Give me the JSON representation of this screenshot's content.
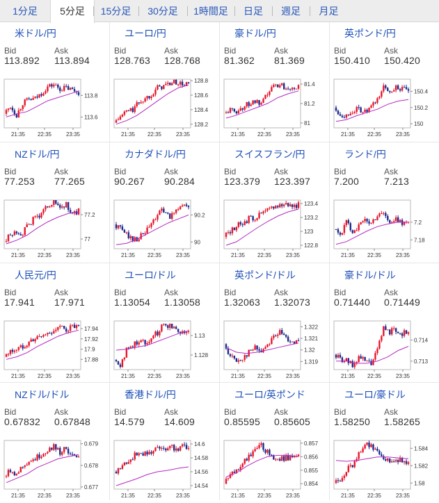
{
  "tabs": [
    "1分足",
    "5分足",
    "15分足",
    "30分足",
    "1時間足",
    "日足",
    "週足",
    "月足"
  ],
  "active_tab": 1,
  "labels": {
    "bid": "Bid",
    "ask": "Ask"
  },
  "x_ticks": [
    "21:35",
    "22:35",
    "23:35"
  ],
  "colors": {
    "up": "#e8152b",
    "down": "#1d2a8c",
    "ma": "#b428c0",
    "link": "#1d50b8"
  },
  "pairs": [
    {
      "name": "米ドル/円",
      "flag": "us-jp",
      "bid": "113.892",
      "ask": "113.894",
      "chart_data": {
        "type": "candlestick",
        "ylim": [
          113.5,
          113.95
        ],
        "y_ticks": [
          "113.8",
          "113.6"
        ],
        "y_tick_values": [
          113.8,
          113.6
        ],
        "path": [
          113.63,
          113.7,
          113.62,
          113.73,
          113.76,
          113.77,
          113.82,
          113.88,
          113.9,
          113.86,
          113.87,
          113.85,
          113.83
        ],
        "ma": [
          113.6,
          113.63,
          113.65,
          113.7,
          113.75,
          113.78,
          113.81,
          113.84
        ]
      }
    },
    {
      "name": "ユーロ/円",
      "flag": "eu-jp",
      "bid": "128.763",
      "ask": "128.768",
      "chart_data": {
        "type": "candlestick",
        "ylim": [
          128.15,
          128.82
        ],
        "y_ticks": [
          "128.8",
          "128.6",
          "128.4",
          "128.2"
        ],
        "y_tick_values": [
          128.8,
          128.6,
          128.4,
          128.2
        ],
        "path": [
          128.22,
          128.3,
          128.38,
          128.4,
          128.5,
          128.55,
          128.62,
          128.7,
          128.73,
          128.76,
          128.78,
          128.74,
          128.76
        ],
        "ma": [
          128.2,
          128.25,
          128.32,
          128.42,
          128.52,
          128.62,
          128.7,
          128.74
        ]
      }
    },
    {
      "name": "豪ドル/円",
      "flag": "au-jp",
      "bid": "81.362",
      "ask": "81.369",
      "chart_data": {
        "type": "candlestick",
        "ylim": [
          80.95,
          81.45
        ],
        "y_ticks": [
          "81.4",
          "81.2",
          "81"
        ],
        "y_tick_values": [
          81.4,
          81.2,
          81
        ],
        "path": [
          81.1,
          81.13,
          81.12,
          81.16,
          81.2,
          81.22,
          81.18,
          81.3,
          81.38,
          81.4,
          81.36,
          81.38,
          81.36
        ],
        "ma": [
          81.05,
          81.08,
          81.12,
          81.16,
          81.2,
          81.26,
          81.3,
          81.33
        ]
      }
    },
    {
      "name": "英ポンド/円",
      "flag": "uk-jp",
      "bid": "150.410",
      "ask": "150.420",
      "chart_data": {
        "type": "candlestick",
        "ylim": [
          149.95,
          150.55
        ],
        "y_ticks": [
          "150.4",
          "150.2",
          "150"
        ],
        "y_tick_values": [
          150.4,
          150.2,
          150
        ],
        "path": [
          150.2,
          150.12,
          150.1,
          150.16,
          150.18,
          150.14,
          150.2,
          150.3,
          150.45,
          150.4,
          150.46,
          150.42,
          150.41
        ],
        "ma": [
          150.03,
          150.05,
          150.1,
          150.14,
          150.18,
          150.24,
          150.28,
          150.3
        ]
      }
    },
    {
      "name": "NZドル/円",
      "flag": "nz-jp",
      "bid": "77.253",
      "ask": "77.265",
      "chart_data": {
        "type": "candlestick",
        "ylim": [
          76.92,
          77.32
        ],
        "y_ticks": [
          "77.2",
          "77"
        ],
        "y_tick_values": [
          77.2,
          77
        ],
        "path": [
          76.98,
          77.03,
          77.06,
          77.05,
          77.12,
          77.18,
          77.2,
          77.28,
          77.3,
          77.26,
          77.28,
          77.2,
          77.23
        ],
        "ma": [
          76.96,
          76.99,
          77.03,
          77.09,
          77.14,
          77.18,
          77.21,
          77.22
        ]
      }
    },
    {
      "name": "カナダドル/円",
      "flag": "ca-jp",
      "bid": "90.267",
      "ask": "90.284",
      "chart_data": {
        "type": "candlestick",
        "ylim": [
          89.95,
          90.31
        ],
        "y_ticks": [
          "90.2",
          "90"
        ],
        "y_tick_values": [
          90.2,
          90
        ],
        "path": [
          90.13,
          90.1,
          90.06,
          90.02,
          90.03,
          90.07,
          90.13,
          90.2,
          90.24,
          90.17,
          90.25,
          90.27,
          90.26
        ],
        "ma": [
          89.98,
          89.99,
          90.02,
          90.06,
          90.1,
          90.14,
          90.17,
          90.2
        ]
      }
    },
    {
      "name": "スイスフラン/円",
      "flag": "ch-jp",
      "bid": "123.379",
      "ask": "123.397",
      "chart_data": {
        "type": "candlestick",
        "ylim": [
          122.75,
          123.45
        ],
        "y_ticks": [
          "123.4",
          "123.2",
          "123",
          "122.8"
        ],
        "y_tick_values": [
          123.4,
          123.2,
          123,
          122.8
        ],
        "path": [
          122.92,
          123,
          123.08,
          123.12,
          123.18,
          123.2,
          123.25,
          123.3,
          123.36,
          123.38,
          123.4,
          123.37,
          123.38
        ],
        "ma": [
          122.8,
          122.85,
          122.95,
          123.05,
          123.14,
          123.22,
          123.28,
          123.32
        ]
      }
    },
    {
      "name": "ランド/円",
      "flag": "za-jp",
      "bid": "7.200",
      "ask": "7.213",
      "chart_data": {
        "type": "candlestick",
        "ylim": [
          7.17,
          7.225
        ],
        "y_ticks": [
          "7.2",
          "7.18"
        ],
        "y_tick_values": [
          7.2,
          7.18
        ],
        "path": [
          7.192,
          7.186,
          7.2,
          7.19,
          7.196,
          7.202,
          7.199,
          7.208,
          7.212,
          7.198,
          7.203,
          7.2,
          7.201
        ],
        "ma": [
          7.175,
          7.178,
          7.184,
          7.19,
          7.195,
          7.198,
          7.2,
          7.2
        ]
      }
    },
    {
      "name": "人民元/円",
      "flag": "cn-jp",
      "bid": "17.941",
      "ask": "17.971",
      "chart_data": {
        "type": "candlestick",
        "ylim": [
          17.86,
          17.955
        ],
        "y_ticks": [
          "17.94",
          "17.92",
          "17.9",
          "17.88"
        ],
        "y_tick_values": [
          17.94,
          17.92,
          17.9,
          17.88
        ],
        "path": [
          17.885,
          17.895,
          17.9,
          17.905,
          17.915,
          17.92,
          17.925,
          17.93,
          17.937,
          17.942,
          17.938,
          17.944,
          17.941
        ],
        "ma": [
          17.88,
          17.885,
          17.893,
          17.905,
          17.915,
          17.925,
          17.932,
          17.937
        ]
      }
    },
    {
      "name": "ユーロ/ドル",
      "flag": "eu-us",
      "bid": "1.13054",
      "ask": "1.13058",
      "chart_data": {
        "type": "candlestick",
        "ylim": [
          1.1265,
          1.1315
        ],
        "y_ticks": [
          "1.13",
          "1.128"
        ],
        "y_tick_values": [
          1.13,
          1.128
        ],
        "path": [
          1.1275,
          1.127,
          1.1285,
          1.129,
          1.1295,
          1.1293,
          1.1298,
          1.1303,
          1.1312,
          1.131,
          1.1307,
          1.1304,
          1.1305
        ],
        "ma": [
          1.1285,
          1.1286,
          1.1288,
          1.129,
          1.1294,
          1.1298,
          1.1302,
          1.1305
        ]
      }
    },
    {
      "name": "英ポンド/ドル",
      "flag": "uk-us",
      "bid": "1.32063",
      "ask": "1.32073",
      "chart_data": {
        "type": "candlestick",
        "ylim": [
          1.3183,
          1.3225
        ],
        "y_ticks": [
          "1.322",
          "1.321",
          "1.32",
          "1.319"
        ],
        "y_tick_values": [
          1.322,
          1.321,
          1.32,
          1.319
        ],
        "path": [
          1.3205,
          1.3195,
          1.319,
          1.3193,
          1.3198,
          1.3202,
          1.3199,
          1.3205,
          1.3212,
          1.3215,
          1.321,
          1.3208,
          1.3206
        ],
        "ma": [
          1.3202,
          1.3198,
          1.3197,
          1.3198,
          1.32,
          1.3202,
          1.3204,
          1.3206
        ]
      }
    },
    {
      "name": "豪ドル/ドル",
      "flag": "au-us",
      "bid": "0.71440",
      "ask": "0.71449",
      "chart_data": {
        "type": "candlestick",
        "ylim": [
          0.7126,
          0.7149
        ],
        "y_ticks": [
          "0.714",
          "0.713"
        ],
        "y_tick_values": [
          0.714,
          0.713
        ],
        "path": [
          0.7133,
          0.7131,
          0.713,
          0.7128,
          0.7132,
          0.713,
          0.7129,
          0.7135,
          0.7146,
          0.7144,
          0.7145,
          0.7143,
          0.7144
        ],
        "ma": [
          0.713,
          0.713,
          0.7129,
          0.7129,
          0.713,
          0.7132,
          0.7135,
          0.7137
        ]
      }
    },
    {
      "name": "NZドル/ドル",
      "flag": "nz-us",
      "bid": "0.67832",
      "ask": "0.67848",
      "chart_data": {
        "type": "candlestick",
        "ylim": [
          0.6769,
          0.67915
        ],
        "y_ticks": [
          "0.679",
          "0.678",
          "0.677"
        ],
        "y_tick_values": [
          0.679,
          0.678,
          0.677
        ],
        "path": [
          0.6775,
          0.6778,
          0.6776,
          0.678,
          0.6782,
          0.6783,
          0.6785,
          0.6787,
          0.6789,
          0.6786,
          0.6788,
          0.6784,
          0.6783
        ],
        "ma": [
          0.6772,
          0.6774,
          0.6776,
          0.6779,
          0.6781,
          0.6783,
          0.6784,
          0.6785
        ]
      }
    },
    {
      "name": "香港ドル/円",
      "flag": "hk-jp",
      "bid": "14.579",
      "ask": "14.609",
      "chart_data": {
        "type": "candlestick",
        "ylim": [
          14.535,
          14.605
        ],
        "y_ticks": [
          "14.6",
          "14.58",
          "14.56",
          "14.54"
        ],
        "y_tick_values": [
          14.6,
          14.58,
          14.56,
          14.54
        ],
        "path": [
          14.56,
          14.565,
          14.575,
          14.58,
          14.59,
          14.585,
          14.59,
          14.595,
          14.59,
          14.6,
          14.592,
          14.598,
          14.595
        ],
        "ma": [
          14.54,
          14.545,
          14.55,
          14.556,
          14.56,
          14.562,
          14.565,
          14.567
        ]
      }
    },
    {
      "name": "ユーロ/英ポンド",
      "flag": "eu-uk",
      "bid": "0.85595",
      "ask": "0.85605",
      "chart_data": {
        "type": "candlestick",
        "ylim": [
          0.8536,
          0.8572
        ],
        "y_ticks": [
          "0.857",
          "0.856",
          "0.855",
          "0.854"
        ],
        "y_tick_values": [
          0.857,
          0.856,
          0.855,
          0.854
        ],
        "path": [
          0.854,
          0.8546,
          0.855,
          0.8556,
          0.856,
          0.8565,
          0.8568,
          0.8563,
          0.856,
          0.8558,
          0.8559,
          0.856,
          0.856
        ],
        "ma": [
          0.8545,
          0.8548,
          0.8553,
          0.8557,
          0.856,
          0.8561,
          0.8561,
          0.856
        ]
      }
    },
    {
      "name": "ユーロ/豪ドル",
      "flag": "eu-au",
      "bid": "1.58250",
      "ask": "1.58265",
      "chart_data": {
        "type": "candlestick",
        "ylim": [
          1.5793,
          1.5849
        ],
        "y_ticks": [
          "1.584",
          "1.582",
          "1.58"
        ],
        "y_tick_values": [
          1.584,
          1.582,
          1.58
        ],
        "path": [
          1.58,
          1.5805,
          1.5815,
          1.582,
          1.5835,
          1.5845,
          1.5842,
          1.5838,
          1.583,
          1.5825,
          1.5828,
          1.5826,
          1.5825
        ],
        "ma": [
          1.5826,
          1.5825,
          1.5826,
          1.5828,
          1.583,
          1.583,
          1.5829,
          1.5828
        ]
      }
    }
  ]
}
